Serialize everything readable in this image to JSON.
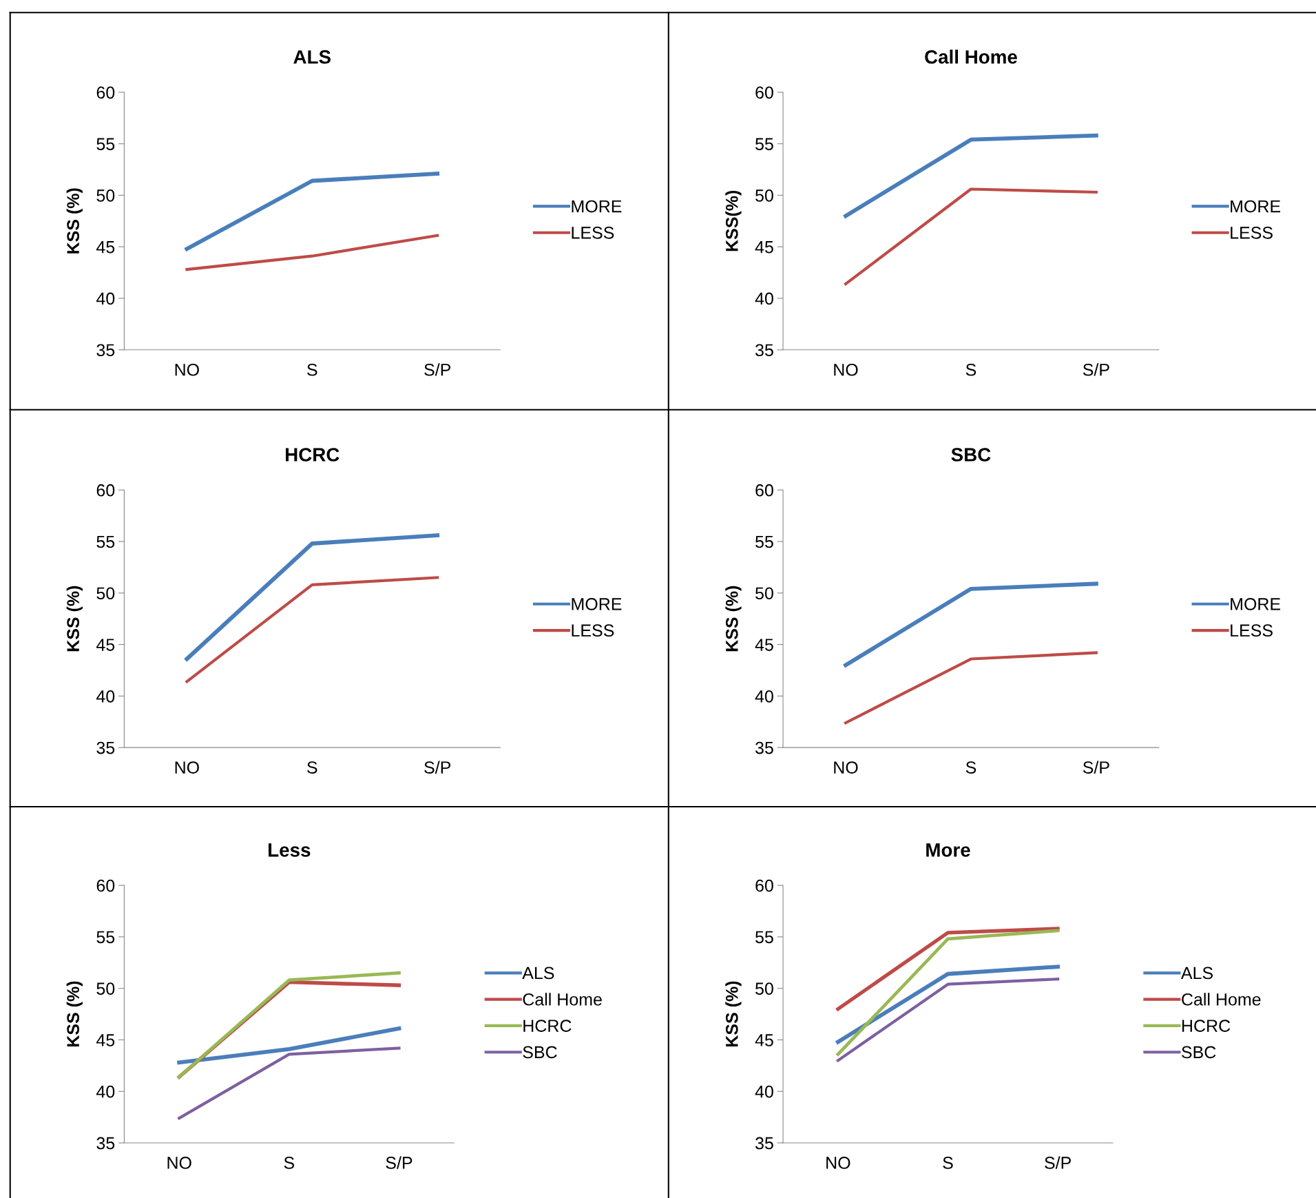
{
  "chart_data": [
    {
      "type": "line",
      "title": "ALS",
      "ylabel": "KSS (%)",
      "categories": [
        "NO",
        "S",
        "S/P"
      ],
      "ylim": [
        35,
        60
      ],
      "yticks": [
        35,
        40,
        45,
        50,
        55,
        60
      ],
      "grid": false,
      "legend": "right",
      "series": [
        {
          "name": "MORE",
          "color": "#4a7ebb",
          "values": [
            44.8,
            51.4,
            52.1
          ]
        },
        {
          "name": "LESS",
          "color": "#be4b48",
          "values": [
            42.8,
            44.1,
            46.1
          ]
        }
      ]
    },
    {
      "type": "line",
      "title": "Call Home",
      "ylabel": "KSS(%)",
      "categories": [
        "NO",
        "S",
        "S/P"
      ],
      "ylim": [
        35,
        60
      ],
      "yticks": [
        35,
        40,
        45,
        50,
        55,
        60
      ],
      "grid": false,
      "legend": "right",
      "series": [
        {
          "name": "MORE",
          "color": "#4a7ebb",
          "values": [
            48.0,
            55.4,
            55.8
          ]
        },
        {
          "name": "LESS",
          "color": "#be4b48",
          "values": [
            41.4,
            50.6,
            50.3
          ]
        }
      ]
    },
    {
      "type": "line",
      "title": "HCRC",
      "ylabel": "KSS (%)",
      "categories": [
        "NO",
        "S",
        "S/P"
      ],
      "ylim": [
        35,
        60
      ],
      "yticks": [
        35,
        40,
        45,
        50,
        55,
        60
      ],
      "grid": false,
      "legend": "right",
      "series": [
        {
          "name": "MORE",
          "color": "#4a7ebb",
          "values": [
            43.6,
            54.8,
            55.6
          ]
        },
        {
          "name": "LESS",
          "color": "#be4b48",
          "values": [
            41.4,
            50.8,
            51.5
          ]
        }
      ]
    },
    {
      "type": "line",
      "title": "SBC",
      "ylabel": "KSS (%)",
      "categories": [
        "NO",
        "S",
        "S/P"
      ],
      "ylim": [
        35,
        60
      ],
      "yticks": [
        35,
        40,
        45,
        50,
        55,
        60
      ],
      "grid": false,
      "legend": "right",
      "series": [
        {
          "name": "MORE",
          "color": "#4a7ebb",
          "values": [
            43.0,
            50.4,
            50.9
          ]
        },
        {
          "name": "LESS",
          "color": "#be4b48",
          "values": [
            37.4,
            43.6,
            44.2
          ]
        }
      ]
    },
    {
      "type": "line",
      "title": "Less",
      "ylabel": "KSS (%)",
      "categories": [
        "NO",
        "S",
        "S/P"
      ],
      "ylim": [
        35,
        60
      ],
      "yticks": [
        35,
        40,
        45,
        50,
        55,
        60
      ],
      "grid": false,
      "legend": "right",
      "series": [
        {
          "name": "ALS",
          "color": "#4a7ebb",
          "values": [
            42.8,
            44.1,
            46.1
          ]
        },
        {
          "name": "Call Home",
          "color": "#be4b48",
          "values": [
            41.4,
            50.6,
            50.3
          ]
        },
        {
          "name": "HCRC",
          "color": "#98b954",
          "values": [
            41.4,
            50.8,
            51.5
          ]
        },
        {
          "name": "SBC",
          "color": "#7d60a0",
          "values": [
            37.4,
            43.6,
            44.2
          ]
        }
      ]
    },
    {
      "type": "line",
      "title": "More",
      "ylabel": "KSS (%)",
      "categories": [
        "NO",
        "S",
        "S/P"
      ],
      "ylim": [
        35,
        60
      ],
      "yticks": [
        35,
        40,
        45,
        50,
        55,
        60
      ],
      "grid": false,
      "legend": "right",
      "series": [
        {
          "name": "ALS",
          "color": "#4a7ebb",
          "values": [
            44.8,
            51.4,
            52.1
          ]
        },
        {
          "name": "Call Home",
          "color": "#be4b48",
          "values": [
            48.0,
            55.4,
            55.8
          ]
        },
        {
          "name": "HCRC",
          "color": "#98b954",
          "values": [
            43.6,
            54.8,
            55.6
          ]
        },
        {
          "name": "SBC",
          "color": "#7d60a0",
          "values": [
            43.0,
            50.4,
            50.9
          ]
        }
      ]
    }
  ]
}
